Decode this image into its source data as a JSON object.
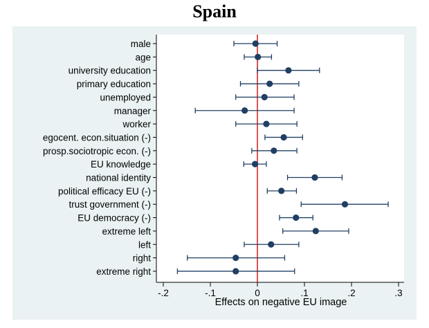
{
  "chart_data": {
    "type": "dot-whisker",
    "title": "Spain",
    "xlabel": "Effects on negative EU image",
    "ylabel": "",
    "xlim": [
      -0.2,
      0.3
    ],
    "xticks": [
      -0.2,
      -0.1,
      0,
      0.1,
      0.2,
      0.3
    ],
    "xtick_labels": [
      "-.2",
      "-.1",
      "0",
      ".1",
      ".2",
      ".3"
    ],
    "reference_line": 0,
    "colors": {
      "marker": "#1f3f63",
      "reference_line": "#d62728",
      "panel_background": "#eaf2f3",
      "plot_background": "#ffffff"
    },
    "points": [
      {
        "label": "male",
        "estimate": -0.004,
        "ci_low": -0.05,
        "ci_high": 0.042
      },
      {
        "label": "age",
        "estimate": 0.001,
        "ci_low": -0.028,
        "ci_high": 0.03
      },
      {
        "label": "university education",
        "estimate": 0.066,
        "ci_low": 0.0,
        "ci_high": 0.132
      },
      {
        "label": "primary education",
        "estimate": 0.026,
        "ci_low": -0.036,
        "ci_high": 0.088
      },
      {
        "label": "unemployed",
        "estimate": 0.015,
        "ci_low": -0.046,
        "ci_high": 0.078
      },
      {
        "label": "manager",
        "estimate": -0.027,
        "ci_low": -0.132,
        "ci_high": 0.078
      },
      {
        "label": "worker",
        "estimate": 0.019,
        "ci_low": -0.046,
        "ci_high": 0.084
      },
      {
        "label": "egocent. econ.situation (-)",
        "estimate": 0.056,
        "ci_low": 0.016,
        "ci_high": 0.096
      },
      {
        "label": "prosp.sociotropic econ. (-)",
        "estimate": 0.035,
        "ci_low": -0.012,
        "ci_high": 0.084
      },
      {
        "label": "EU knowledge",
        "estimate": -0.005,
        "ci_low": -0.029,
        "ci_high": 0.019
      },
      {
        "label": "national identity",
        "estimate": 0.122,
        "ci_low": 0.064,
        "ci_high": 0.18
      },
      {
        "label": "political efficacy EU (-)",
        "estimate": 0.051,
        "ci_low": 0.021,
        "ci_high": 0.083
      },
      {
        "label": "trust government (-)",
        "estimate": 0.186,
        "ci_low": 0.093,
        "ci_high": 0.278
      },
      {
        "label": "EU democracy (-)",
        "estimate": 0.082,
        "ci_low": 0.047,
        "ci_high": 0.118
      },
      {
        "label": "extreme left",
        "estimate": 0.124,
        "ci_low": 0.054,
        "ci_high": 0.194
      },
      {
        "label": "left",
        "estimate": 0.029,
        "ci_low": -0.028,
        "ci_high": 0.088
      },
      {
        "label": "right",
        "estimate": -0.046,
        "ci_low": -0.149,
        "ci_high": 0.058
      },
      {
        "label": "extreme right",
        "estimate": -0.046,
        "ci_low": -0.17,
        "ci_high": 0.079
      }
    ]
  }
}
